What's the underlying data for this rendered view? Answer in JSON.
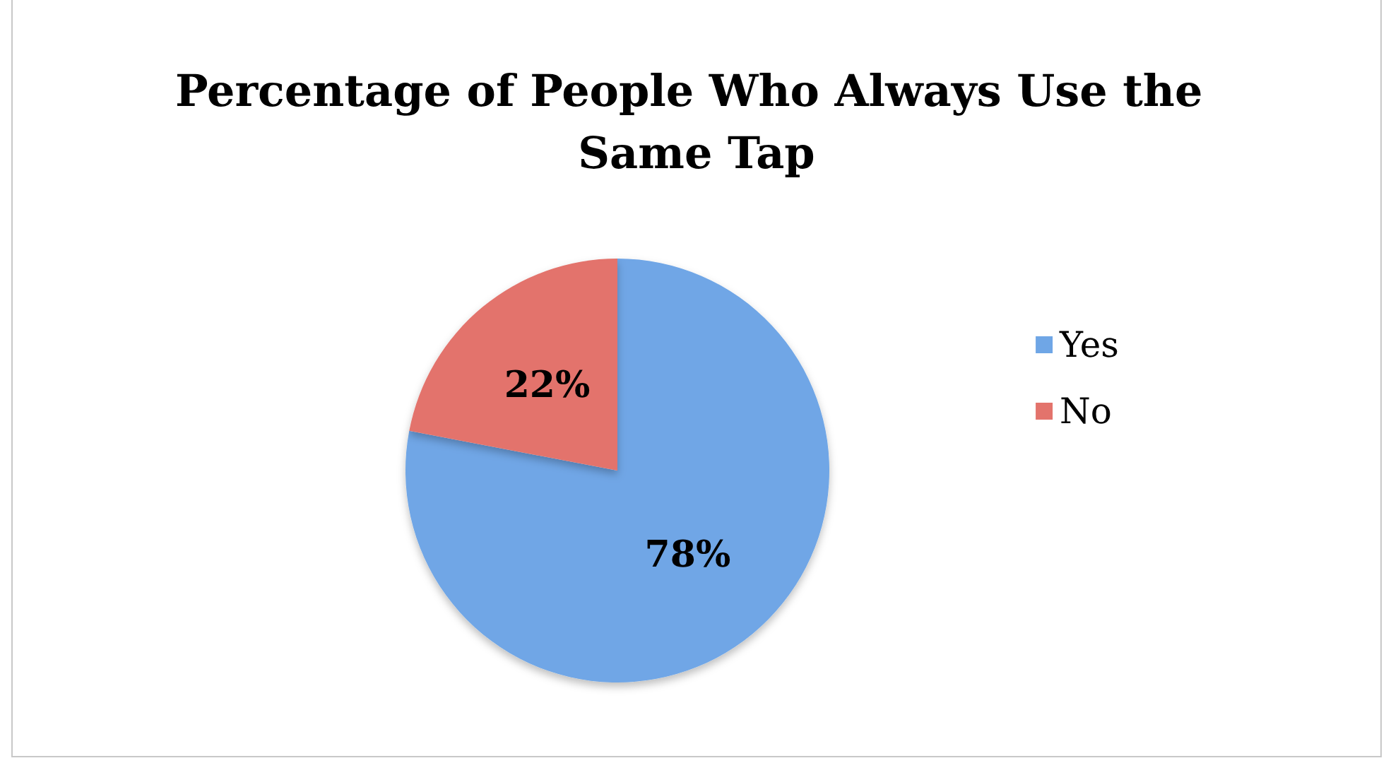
{
  "chart_data": {
    "type": "pie",
    "title": "Percentage of People Who Always Use the Same Tap",
    "categories": [
      "Yes",
      "No"
    ],
    "values": [
      78,
      22
    ],
    "colors": [
      "#6fa6e6",
      "#e3736c"
    ],
    "value_labels": [
      "78%",
      "22%"
    ],
    "legend": "right"
  }
}
